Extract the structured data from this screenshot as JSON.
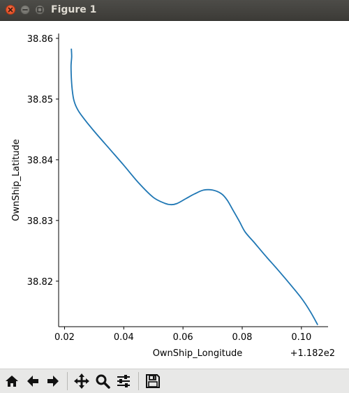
{
  "window": {
    "title": "Figure 1"
  },
  "colors": {
    "line": "#1f77b4",
    "titlebar": "#3c3b37",
    "close": "#e95420"
  },
  "toolbar": {
    "buttons": [
      {
        "name": "home-button",
        "icon": "home-icon"
      },
      {
        "name": "back-button",
        "icon": "arrow-left-icon"
      },
      {
        "name": "forward-button",
        "icon": "arrow-right-icon"
      },
      {
        "name": "pan-button",
        "icon": "move-icon"
      },
      {
        "name": "zoom-button",
        "icon": "magnifier-icon"
      },
      {
        "name": "subplots-button",
        "icon": "sliders-icon"
      },
      {
        "name": "save-button",
        "icon": "floppy-disk-icon"
      }
    ]
  },
  "chart_data": {
    "type": "line",
    "title": "",
    "xlabel": "OwnShip_Longitude",
    "ylabel": "OwnShip_Latitude",
    "x_offset_label": "+1.182e2",
    "xlim": [
      0.018,
      0.109
    ],
    "ylim": [
      38.8125,
      38.8608
    ],
    "xticks": [
      0.02,
      0.04,
      0.06,
      0.08,
      0.1
    ],
    "xtick_labels": [
      "0.02",
      "0.04",
      "0.06",
      "0.08",
      "0.10"
    ],
    "yticks": [
      38.82,
      38.83,
      38.84,
      38.85,
      38.86
    ],
    "ytick_labels": [
      "38.82",
      "38.83",
      "38.84",
      "38.85",
      "38.86"
    ],
    "grid": false,
    "series": [
      {
        "color": "#1f77b4",
        "x": [
          0.0223,
          0.0224,
          0.0222,
          0.0223,
          0.0226,
          0.0232,
          0.0245,
          0.0265,
          0.03,
          0.035,
          0.04,
          0.045,
          0.05,
          0.054,
          0.056,
          0.058,
          0.061,
          0.064,
          0.067,
          0.07,
          0.073,
          0.075,
          0.077,
          0.079,
          0.081,
          0.084,
          0.088,
          0.092,
          0.096,
          0.1,
          0.103,
          0.1055
        ],
        "y": [
          38.8583,
          38.857,
          38.8555,
          38.8535,
          38.8515,
          38.8497,
          38.8482,
          38.8468,
          38.8447,
          38.8419,
          38.8391,
          38.8362,
          38.8338,
          38.8328,
          38.8326,
          38.8328,
          38.8336,
          38.8344,
          38.835,
          38.835,
          38.8344,
          38.8333,
          38.8316,
          38.8299,
          38.8281,
          38.8264,
          38.8241,
          38.8219,
          38.8196,
          38.8172,
          38.815,
          38.8128
        ]
      }
    ]
  }
}
